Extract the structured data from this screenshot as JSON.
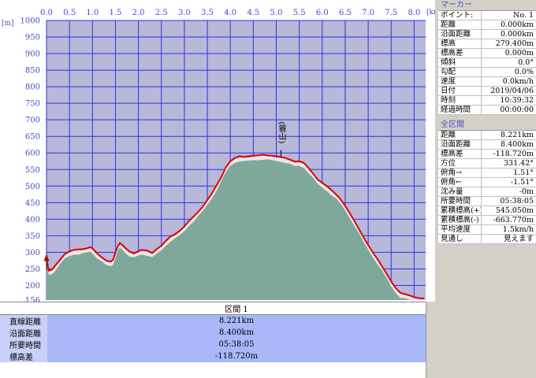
{
  "chart_data": {
    "type": "area",
    "x_unit": "[km]",
    "y_unit": "[m]",
    "xlim": [
      0,
      8.221
    ],
    "ylim": [
      150,
      1000
    ],
    "x_ticks": [
      "0.0",
      "0.5",
      "1.0",
      "1.5",
      "2.0",
      "2.5",
      "3.0",
      "3.5",
      "4.0",
      "4.5",
      "5.0",
      "5.5",
      "6.0",
      "6.5",
      "7.0",
      "7.5",
      "8.0"
    ],
    "y_ticks": [
      "1000",
      "950",
      "900",
      "850",
      "800",
      "750",
      "700",
      "650",
      "600",
      "550",
      "500",
      "450",
      "400",
      "350",
      "300",
      "250",
      "200",
      "156"
    ],
    "series": [
      {
        "x": [
          0.0,
          0.05,
          0.1,
          0.15,
          0.2,
          0.3,
          0.4,
          0.5,
          0.6,
          0.7,
          0.8,
          0.9,
          0.95,
          1.0,
          1.1,
          1.2,
          1.3,
          1.4,
          1.45,
          1.5,
          1.55,
          1.6,
          1.65,
          1.7,
          1.8,
          1.9,
          2.0,
          2.05,
          2.1,
          2.2,
          2.3,
          2.4,
          2.5,
          2.6,
          2.7,
          2.8,
          2.9,
          3.0,
          3.1,
          3.2,
          3.3,
          3.4,
          3.5,
          3.6,
          3.7,
          3.8,
          3.9,
          4.0,
          4.1,
          4.2,
          4.3,
          4.4,
          4.5,
          4.6,
          4.7,
          4.8,
          4.9,
          5.0,
          5.1,
          5.2,
          5.3,
          5.4,
          5.5,
          5.6,
          5.7,
          5.8,
          5.9,
          6.0,
          6.1,
          6.2,
          6.3,
          6.4,
          6.5,
          6.6,
          6.7,
          6.8,
          6.9,
          7.0,
          7.1,
          7.2,
          7.3,
          7.4,
          7.5,
          7.6,
          7.7,
          7.8,
          7.9,
          8.0,
          8.1,
          8.221
        ],
        "y": [
          279.4,
          245,
          247,
          252,
          262,
          278,
          295,
          303,
          308,
          309,
          310,
          313,
          316,
          312,
          297,
          285,
          275,
          272,
          278,
          300,
          318,
          328,
          322,
          315,
          303,
          297,
          303,
          307,
          307,
          305,
          298,
          310,
          320,
          335,
          348,
          355,
          365,
          378,
          395,
          408,
          422,
          438,
          458,
          478,
          502,
          526,
          556,
          575,
          585,
          590,
          588,
          590,
          592,
          593,
          595,
          593,
          592,
          590,
          588,
          585,
          580,
          574,
          575,
          570,
          555,
          538,
          520,
          510,
          500,
          488,
          475,
          460,
          440,
          418,
          395,
          370,
          345,
          322,
          300,
          280,
          258,
          236,
          212,
          192,
          178,
          174,
          170,
          165,
          162,
          160.68
        ]
      }
    ]
  },
  "summary": {
    "section_header": "区間 1",
    "rows": [
      {
        "label": "直線距離",
        "value": "8.221km"
      },
      {
        "label": "沿面距離",
        "value": "8.400km"
      },
      {
        "label": "所要時間",
        "value": "05:38:05"
      },
      {
        "label": "標高差",
        "value": "-118.720m"
      }
    ]
  },
  "annotation": {
    "label": "(簑山)",
    "x": 5.0,
    "y": 590
  },
  "marker_panel": {
    "title": "マーカー",
    "rows": [
      {
        "label": "ポイント:",
        "value": "No. 1"
      },
      {
        "label": "距離",
        "value": "0.000km"
      },
      {
        "label": "沿面距離",
        "value": "0.000km"
      },
      {
        "label": "標高",
        "value": "279.400m"
      },
      {
        "label": "標高差",
        "value": "0.000m"
      },
      {
        "label": "傾斜",
        "value": "0.0°"
      },
      {
        "label": "勾配",
        "value": "0.0%"
      },
      {
        "label": "速度",
        "value": "0.0km/h"
      },
      {
        "label": "日付",
        "value": "2019/04/06"
      },
      {
        "label": "時刻",
        "value": "10:39:32"
      },
      {
        "label": "経過時間",
        "value": "00:00:00"
      }
    ]
  },
  "total_panel": {
    "title": "全区間",
    "rows": [
      {
        "label": "距離",
        "value": "8.221km"
      },
      {
        "label": "沿面距離",
        "value": "8.400km"
      },
      {
        "label": "標高差",
        "value": "-118.720m"
      },
      {
        "label": "方位",
        "value": "331.42°"
      },
      {
        "label": "俯角→",
        "value": "1.51°"
      },
      {
        "label": "俯角←",
        "value": "-1.51°"
      },
      {
        "label": "沈み量",
        "value": "-0m"
      },
      {
        "label": "所要時間",
        "value": "05:38:05"
      },
      {
        "label": "累積標高(+)",
        "value": "545.050m"
      },
      {
        "label": "累積標高(-)",
        "value": "-663.770m"
      },
      {
        "label": "平均速度",
        "value": "1.5km/h"
      },
      {
        "label": "見通し",
        "value": "見えます"
      }
    ]
  },
  "colors": {
    "plot_bg": "#b8b8d8",
    "grid": "#3030e0",
    "route_line": "#e00000",
    "terrain_fill": "#7fa89c",
    "terrain_edge": "#e8e8e8"
  }
}
